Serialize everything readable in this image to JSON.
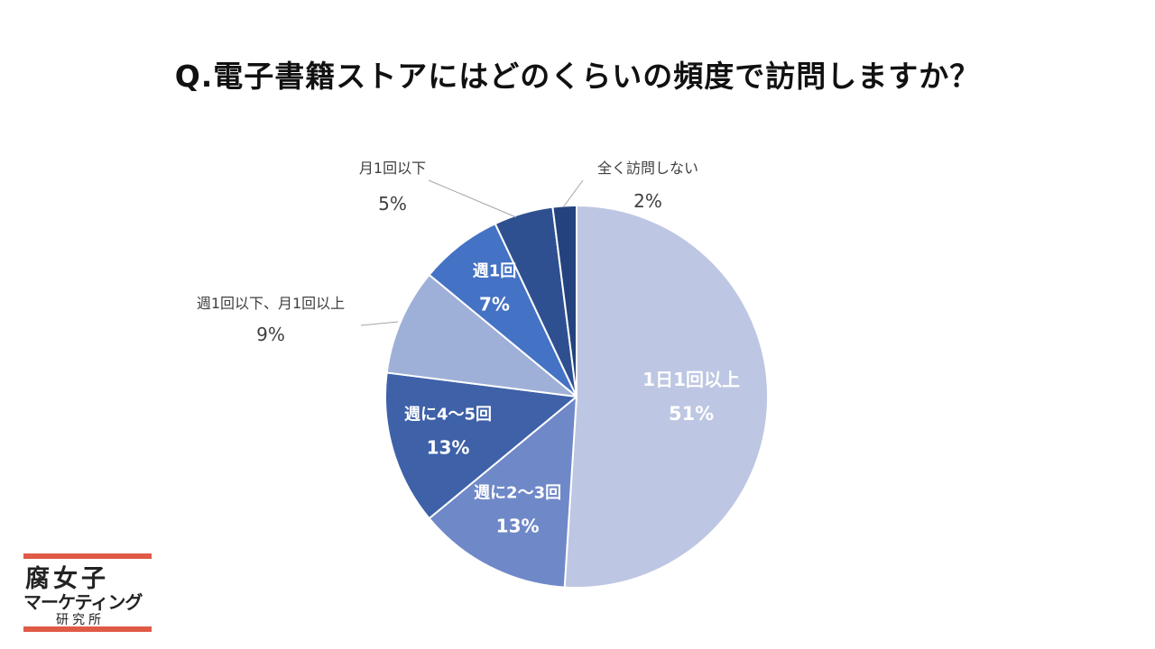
{
  "title": "Q.電子書籍ストアにはどのくらいの頻度で訪問しますか？",
  "logo": {
    "line1": "腐女子",
    "line2": "マーケティング",
    "line3": "研究所"
  },
  "colors": {
    "label_dark": "#404040",
    "label_light": "#ffffff",
    "leader_line": "#a6a6a6",
    "slice_border": "#ffffff",
    "logo_accent": "#e05a45"
  },
  "chart_data": {
    "type": "pie",
    "start_angle_deg": 0,
    "direction": "clockwise",
    "slices": [
      {
        "label": "1日1回以上",
        "value": 51,
        "display": "51%",
        "color": "#bdc6e2",
        "label_placement": "inside",
        "label_color": "light"
      },
      {
        "label": "週に2～3回",
        "value": 13,
        "display": "13%",
        "color": "#6f88c8",
        "label_placement": "inside",
        "label_color": "light"
      },
      {
        "label": "週に4～5回",
        "value": 13,
        "display": "13%",
        "color": "#3e61a8",
        "label_placement": "inside",
        "label_color": "light"
      },
      {
        "label": "週1回以下、月1回以上",
        "value": 9,
        "display": "9%",
        "color": "#9fb0d8",
        "label_placement": "outside",
        "label_color": "dark"
      },
      {
        "label": "週1回",
        "value": 7,
        "display": "7%",
        "color": "#4472c4",
        "label_placement": "inside",
        "label_color": "light"
      },
      {
        "label": "月1回以下",
        "value": 5,
        "display": "5%",
        "color": "#2f5090",
        "label_placement": "outside",
        "label_color": "dark"
      },
      {
        "label": "全く訪問しない",
        "value": 2,
        "display": "2%",
        "color": "#24437e",
        "label_placement": "outside",
        "label_color": "dark"
      }
    ]
  }
}
